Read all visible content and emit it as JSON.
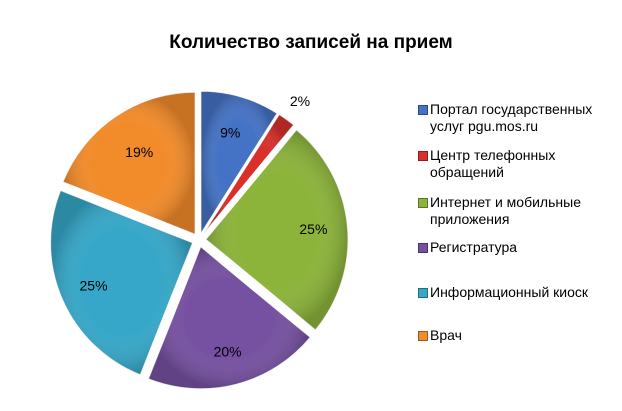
{
  "chart_data": {
    "type": "pie",
    "title": "Количество записей на прием",
    "categories": [
      "Портал государственных услуг pgu.mos.ru",
      "Центр телефонных обращений",
      "Интернет и мобильные приложения",
      "Регистратура",
      "Информационный киоск",
      "Врач"
    ],
    "values": [
      9,
      2,
      25,
      20,
      25,
      19
    ],
    "value_labels": [
      "9%",
      "2%",
      "25%",
      "20%",
      "25%",
      "19%"
    ],
    "colors": [
      "#4472c4",
      "#d9302b",
      "#8cb33a",
      "#7651a1",
      "#36a7c8",
      "#f28b2a"
    ],
    "exploded": true,
    "legend": "right"
  },
  "legend_display": [
    "Портал государственных\nуслуг pgu.mos.ru",
    "Центр телефонных\nобращений",
    "Интернет и мобильные\nприложения",
    "Регистратура",
    "Информационный киоск",
    "Врач"
  ]
}
